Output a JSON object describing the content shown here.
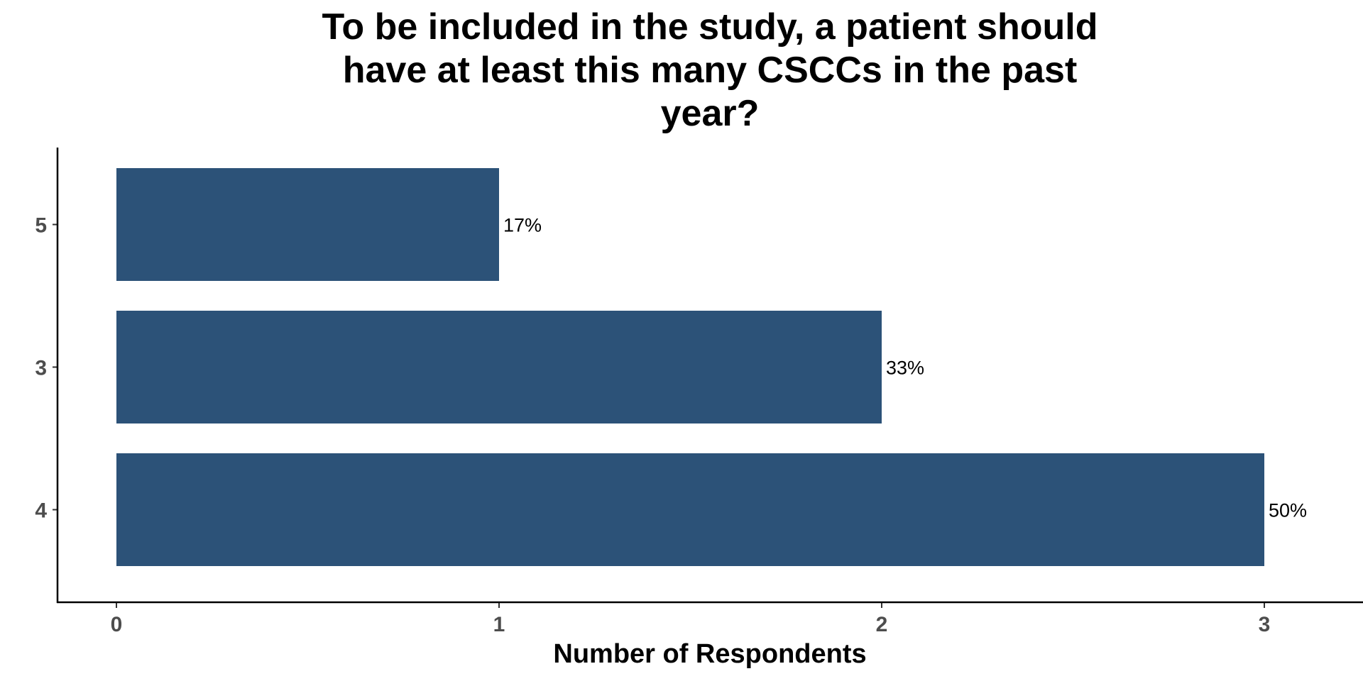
{
  "chart_data": {
    "type": "bar",
    "orientation": "horizontal",
    "title_lines": [
      "To be included in the study, a patient should",
      "have at least this many CSCCs in the past",
      "year?"
    ],
    "xlabel": "Number of Respondents",
    "ylabel": "",
    "categories": [
      "5",
      "3",
      "4"
    ],
    "values": [
      1,
      2,
      3
    ],
    "data_labels": [
      "17%",
      "33%",
      "50%"
    ],
    "xlim": [
      0,
      3
    ],
    "x_ticks": [
      0,
      1,
      2,
      3
    ],
    "bar_color": "#2c5278",
    "grid": false,
    "legend": "none"
  }
}
